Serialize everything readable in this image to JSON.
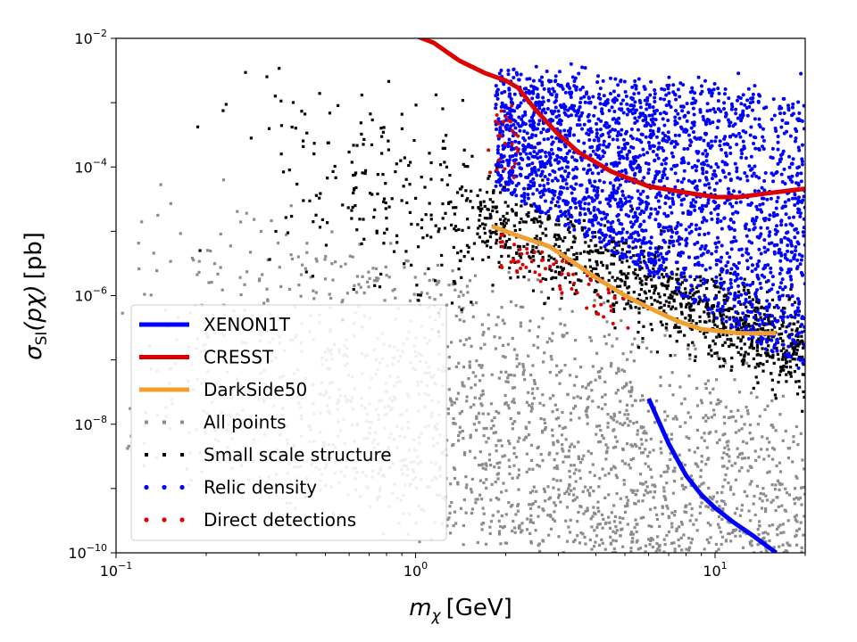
{
  "chart_data": {
    "type": "scatter",
    "title": "",
    "xlabel": "m_χ [GeV]",
    "xlabel_parts": {
      "symbol": "m",
      "subscript": "χ",
      "unit": "[GeV]"
    },
    "ylabel": "σ_SI(pχ) [pb]",
    "ylabel_parts": {
      "symbol": "σ",
      "subscript": "SI",
      "expr": "(pχ)",
      "unit": "[pb]"
    },
    "xscale": "log",
    "yscale": "log",
    "xlim": [
      0.1,
      20
    ],
    "ylim": [
      1e-10,
      0.01
    ],
    "x_ticks": [
      {
        "value": 0.1,
        "base": "10",
        "exp": "−1"
      },
      {
        "value": 1,
        "base": "10",
        "exp": "0"
      },
      {
        "value": 10,
        "base": "10",
        "exp": "1"
      }
    ],
    "y_ticks": [
      {
        "value": 1e-10,
        "base": "10",
        "exp": "−10"
      },
      {
        "value": 1e-08,
        "base": "10",
        "exp": "−8"
      },
      {
        "value": 1e-06,
        "base": "10",
        "exp": "−6"
      },
      {
        "value": 0.0001,
        "base": "10",
        "exp": "−4"
      },
      {
        "value": 0.01,
        "base": "10",
        "exp": "−2"
      }
    ],
    "legend_position": "lower-left",
    "curves": [
      {
        "name": "XENON1T",
        "color": "#0000ff",
        "points": [
          [
            6.0,
            2.5e-08
          ],
          [
            7.0,
            5e-09
          ],
          [
            8.0,
            1.6e-09
          ],
          [
            9.0,
            8e-10
          ],
          [
            10.0,
            5e-10
          ],
          [
            11.5,
            3e-10
          ],
          [
            13.5,
            1.8e-10
          ],
          [
            16.0,
            1e-10
          ]
        ]
      },
      {
        "name": "CRESST",
        "color": "#dd0000",
        "points": [
          [
            1.0,
            0.011
          ],
          [
            1.15,
            0.0085
          ],
          [
            1.4,
            0.0045
          ],
          [
            1.7,
            0.0029
          ],
          [
            2.0,
            0.0022
          ],
          [
            2.2,
            0.0017
          ],
          [
            2.5,
            0.0008
          ],
          [
            3.0,
            0.00032
          ],
          [
            3.5,
            0.00017
          ],
          [
            4.5,
            8.5e-05
          ],
          [
            6.0,
            5e-05
          ],
          [
            8.0,
            4e-05
          ],
          [
            10.0,
            3.4e-05
          ],
          [
            12.0,
            3.4e-05
          ],
          [
            15.0,
            3.9e-05
          ],
          [
            20.0,
            4.6e-05
          ]
        ]
      },
      {
        "name": "DarkSide50",
        "color": "#f0a030",
        "points": [
          [
            1.8,
            1.2e-05
          ],
          [
            2.2,
            8.5e-06
          ],
          [
            2.8,
            5.8e-06
          ],
          [
            3.3,
            3.5e-06
          ],
          [
            4.0,
            1.9e-06
          ],
          [
            5.0,
            1e-06
          ],
          [
            6.0,
            6.5e-07
          ],
          [
            7.5,
            4e-07
          ],
          [
            9.0,
            3e-07
          ],
          [
            12.0,
            2.6e-07
          ],
          [
            16.0,
            2.6e-07
          ]
        ]
      }
    ],
    "scatter_series": [
      {
        "name": "All points",
        "color": "#8c8c8c",
        "count": 2600
      },
      {
        "name": "Small scale structure",
        "color": "#000000",
        "count": 1300
      },
      {
        "name": "Relic density",
        "color": "#0000ff",
        "count": 2400
      },
      {
        "name": "Direct detections",
        "color": "#dd0000",
        "count": 90
      }
    ]
  }
}
